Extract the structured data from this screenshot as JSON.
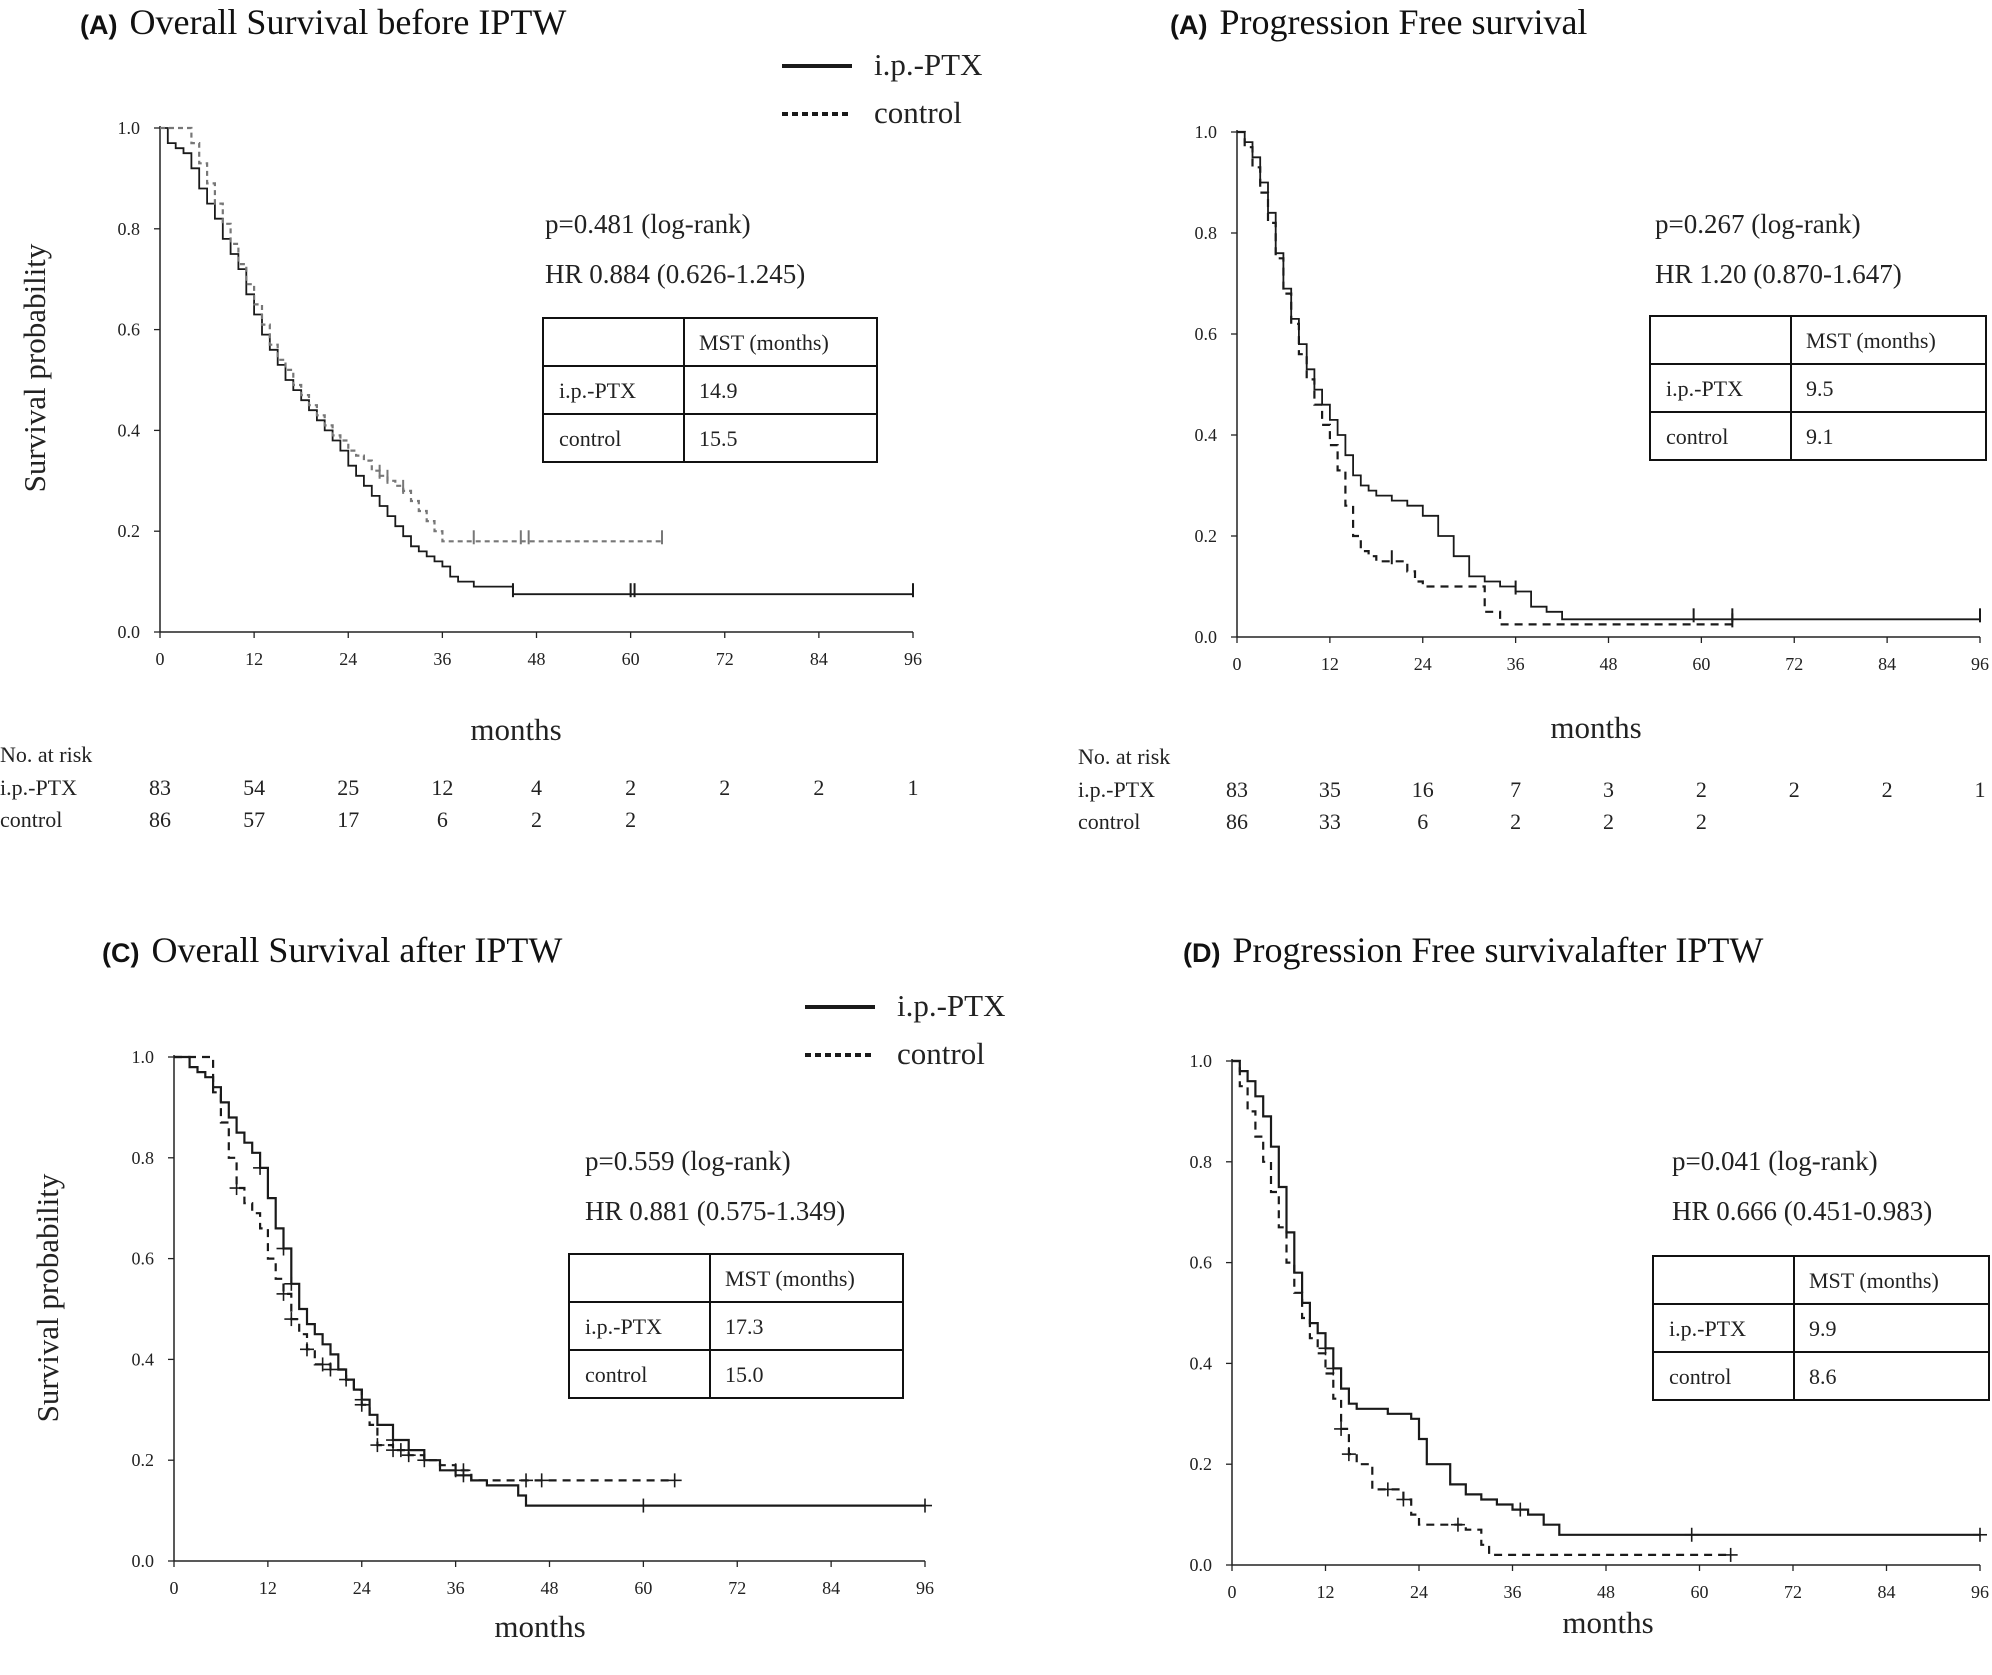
{
  "figure": {
    "x_axis_label": "months",
    "y_axis_label": "Survival probability",
    "at_risk_title": "No. at risk",
    "mst_header": "MST (months)",
    "legend": {
      "treatment": "i.p.-PTX",
      "control": "control"
    },
    "colors": {
      "treatment": "#1a1a1a",
      "control_grey": "#777777",
      "control_black": "#1a1a1a",
      "axis": "#222222"
    }
  },
  "chart_data": [
    {
      "type": "line",
      "panel_letter": "(A)",
      "title": "Overall Survival before IPTW",
      "xlabel": "months",
      "ylabel": "Survival probability",
      "xlim": [
        0,
        96
      ],
      "ylim": [
        0,
        1.0
      ],
      "x_ticks": [
        "0",
        "12",
        "24",
        "36",
        "48",
        "60",
        "72",
        "84",
        "96"
      ],
      "y_ticks": [
        "0.0",
        "0.2",
        "0.4",
        "0.6",
        "0.8",
        "1.0"
      ],
      "stats": {
        "p": "p=0.481 (log-rank)",
        "hr": "HR 0.884 (0.626-1.245)"
      },
      "mst": {
        "treatment": "14.9",
        "control": "15.5"
      },
      "at_risk": {
        "treatment": [
          "83",
          "54",
          "25",
          "12",
          "4",
          "2",
          "2",
          "2",
          "1"
        ],
        "control": [
          "86",
          "57",
          "17",
          "6",
          "2",
          "2"
        ]
      },
      "series": [
        {
          "name": "i.p.-PTX",
          "style": "solid",
          "x": [
            0,
            1,
            2,
            3,
            4,
            5,
            6,
            7,
            8,
            9,
            10,
            11,
            12,
            13,
            14,
            15,
            16,
            17,
            18,
            19,
            20,
            21,
            22,
            23,
            24,
            25,
            26,
            27,
            28,
            29,
            30,
            31,
            32,
            33,
            34,
            35,
            36,
            37,
            38,
            40,
            42,
            45,
            60,
            96
          ],
          "y": [
            1.0,
            0.97,
            0.96,
            0.95,
            0.92,
            0.88,
            0.85,
            0.82,
            0.78,
            0.75,
            0.72,
            0.67,
            0.63,
            0.59,
            0.56,
            0.53,
            0.5,
            0.48,
            0.46,
            0.44,
            0.42,
            0.4,
            0.38,
            0.36,
            0.33,
            0.31,
            0.29,
            0.27,
            0.25,
            0.23,
            0.21,
            0.19,
            0.17,
            0.16,
            0.15,
            0.14,
            0.13,
            0.11,
            0.1,
            0.09,
            0.09,
            0.075,
            0.075,
            0.075
          ],
          "censor_x": [
            45,
            60,
            60.5,
            96
          ]
        },
        {
          "name": "control",
          "style": "dashed-grey",
          "x": [
            0,
            3,
            4,
            5,
            6,
            7,
            8,
            9,
            10,
            11,
            12,
            13,
            14,
            15,
            16,
            17,
            18,
            19,
            20,
            21,
            22,
            23,
            24,
            25,
            26,
            27,
            28,
            29,
            30,
            31,
            32,
            33,
            34,
            35,
            36,
            64
          ],
          "y": [
            1.0,
            1.0,
            0.97,
            0.93,
            0.89,
            0.85,
            0.81,
            0.77,
            0.73,
            0.69,
            0.65,
            0.61,
            0.57,
            0.54,
            0.52,
            0.49,
            0.47,
            0.45,
            0.43,
            0.41,
            0.39,
            0.38,
            0.36,
            0.35,
            0.34,
            0.32,
            0.31,
            0.3,
            0.29,
            0.28,
            0.26,
            0.24,
            0.22,
            0.2,
            0.18,
            0.18
          ],
          "censor_x": [
            28,
            29,
            31,
            40,
            46,
            47,
            64
          ]
        }
      ]
    },
    {
      "type": "line",
      "panel_letter": "(A)",
      "title": "Progression Free survival",
      "xlabel": "months",
      "ylabel": "",
      "xlim": [
        0,
        96
      ],
      "ylim": [
        0,
        1.0
      ],
      "x_ticks": [
        "0",
        "12",
        "24",
        "36",
        "48",
        "60",
        "72",
        "84",
        "96"
      ],
      "y_ticks": [
        "0.0",
        "0.2",
        "0.4",
        "0.6",
        "0.8",
        "1.0"
      ],
      "stats": {
        "p": "p=0.267 (log-rank)",
        "hr": "HR 1.20 (0.870-1.647)"
      },
      "mst": {
        "treatment": "9.5",
        "control": "9.1"
      },
      "at_risk": {
        "treatment": [
          "83",
          "35",
          "16",
          "7",
          "3",
          "2",
          "2",
          "2",
          "1"
        ],
        "control": [
          "86",
          "33",
          "6",
          "2",
          "2",
          "2"
        ]
      },
      "series": [
        {
          "name": "i.p.-PTX",
          "style": "solid",
          "x": [
            0,
            1,
            2,
            3,
            4,
            5,
            6,
            7,
            8,
            9,
            10,
            11,
            12,
            13,
            14,
            15,
            16,
            17,
            18,
            20,
            22,
            24,
            26,
            28,
            30,
            32,
            34,
            36,
            38,
            40,
            42,
            59,
            96
          ],
          "y": [
            1.0,
            0.98,
            0.95,
            0.9,
            0.84,
            0.76,
            0.69,
            0.63,
            0.58,
            0.53,
            0.49,
            0.46,
            0.43,
            0.4,
            0.36,
            0.32,
            0.3,
            0.29,
            0.28,
            0.27,
            0.26,
            0.24,
            0.2,
            0.16,
            0.12,
            0.11,
            0.1,
            0.09,
            0.06,
            0.05,
            0.035,
            0.035,
            0.035
          ],
          "censor_x": [
            36,
            59,
            64,
            96
          ]
        },
        {
          "name": "control",
          "style": "dashed-black",
          "x": [
            0,
            1,
            2,
            3,
            4,
            5,
            6,
            7,
            8,
            9,
            10,
            11,
            12,
            13,
            14,
            15,
            16,
            17,
            18,
            20,
            22,
            23,
            24,
            26,
            28,
            32,
            34,
            64
          ],
          "y": [
            1.0,
            0.97,
            0.93,
            0.88,
            0.82,
            0.75,
            0.68,
            0.62,
            0.56,
            0.51,
            0.46,
            0.42,
            0.38,
            0.33,
            0.26,
            0.2,
            0.17,
            0.16,
            0.15,
            0.15,
            0.13,
            0.11,
            0.1,
            0.1,
            0.1,
            0.05,
            0.025,
            0.025
          ],
          "censor_x": [
            20,
            64
          ]
        }
      ]
    },
    {
      "type": "line",
      "panel_letter": "(C)",
      "title": "Overall Survival after IPTW",
      "xlabel": "months",
      "ylabel": "Survival probability",
      "xlim": [
        0,
        96
      ],
      "ylim": [
        0,
        1.0
      ],
      "x_ticks": [
        "0",
        "12",
        "24",
        "36",
        "48",
        "60",
        "72",
        "84",
        "96"
      ],
      "y_ticks": [
        "0.0",
        "0.2",
        "0.4",
        "0.6",
        "0.8",
        "1.0"
      ],
      "stats": {
        "p": "p=0.559 (log-rank)",
        "hr": "HR 0.881 (0.575-1.349)"
      },
      "mst": {
        "treatment": "17.3",
        "control": "15.0"
      },
      "series": [
        {
          "name": "i.p.-PTX",
          "style": "solid",
          "x": [
            0,
            2,
            3,
            4,
            5,
            6,
            7,
            8,
            9,
            10,
            11,
            12,
            13,
            14,
            15,
            16,
            17,
            18,
            19,
            20,
            21,
            22,
            23,
            24,
            25,
            26,
            28,
            30,
            32,
            34,
            36,
            38,
            40,
            44,
            45,
            96
          ],
          "y": [
            1.0,
            0.98,
            0.97,
            0.96,
            0.94,
            0.91,
            0.88,
            0.85,
            0.83,
            0.81,
            0.78,
            0.72,
            0.66,
            0.62,
            0.55,
            0.5,
            0.47,
            0.45,
            0.43,
            0.41,
            0.38,
            0.36,
            0.34,
            0.32,
            0.29,
            0.27,
            0.24,
            0.22,
            0.2,
            0.18,
            0.17,
            0.16,
            0.15,
            0.13,
            0.11,
            0.11
          ],
          "censor_x": [
            11,
            14,
            15,
            24,
            28,
            30,
            37,
            60,
            96
          ]
        },
        {
          "name": "control",
          "style": "dashed-black",
          "x": [
            0,
            4,
            5,
            6,
            7,
            8,
            9,
            10,
            11,
            12,
            13,
            14,
            15,
            16,
            17,
            18,
            20,
            22,
            23,
            24,
            25,
            26,
            28,
            30,
            32,
            34,
            36,
            38,
            64
          ],
          "y": [
            1.0,
            1.0,
            0.93,
            0.87,
            0.8,
            0.74,
            0.71,
            0.69,
            0.66,
            0.6,
            0.56,
            0.53,
            0.48,
            0.45,
            0.42,
            0.39,
            0.38,
            0.36,
            0.34,
            0.31,
            0.27,
            0.23,
            0.22,
            0.21,
            0.2,
            0.19,
            0.18,
            0.16,
            0.16
          ],
          "censor_x": [
            8,
            14,
            15,
            17,
            19,
            20,
            22,
            24,
            26,
            28,
            29,
            30,
            32,
            36,
            37,
            45,
            47,
            64
          ]
        }
      ]
    },
    {
      "type": "line",
      "panel_letter": "(D)",
      "title": "Progression Free survivalafter IPTW",
      "xlabel": "months",
      "ylabel": "",
      "xlim": [
        0,
        96
      ],
      "ylim": [
        0,
        1.0
      ],
      "x_ticks": [
        "0",
        "12",
        "24",
        "36",
        "48",
        "60",
        "72",
        "84",
        "96"
      ],
      "y_ticks": [
        "0.0",
        "0.2",
        "0.4",
        "0.6",
        "0.8",
        "1.0"
      ],
      "stats": {
        "p": "p=0.041 (log-rank)",
        "hr": "HR 0.666 (0.451-0.983)"
      },
      "mst": {
        "treatment": "9.9",
        "control": "8.6"
      },
      "series": [
        {
          "name": "i.p.-PTX",
          "style": "solid",
          "x": [
            0,
            1,
            2,
            3,
            4,
            5,
            6,
            7,
            8,
            9,
            10,
            11,
            12,
            13,
            14,
            15,
            16,
            18,
            20,
            22,
            23,
            24,
            25,
            28,
            30,
            32,
            34,
            36,
            38,
            40,
            42,
            96
          ],
          "y": [
            1.0,
            0.98,
            0.96,
            0.93,
            0.89,
            0.83,
            0.75,
            0.66,
            0.58,
            0.52,
            0.48,
            0.46,
            0.43,
            0.39,
            0.35,
            0.32,
            0.31,
            0.31,
            0.3,
            0.3,
            0.29,
            0.25,
            0.2,
            0.16,
            0.14,
            0.13,
            0.12,
            0.11,
            0.1,
            0.08,
            0.06,
            0.06
          ],
          "censor_x": [
            12,
            13,
            37,
            59,
            96
          ]
        },
        {
          "name": "control",
          "style": "dashed-black",
          "x": [
            0,
            1,
            2,
            3,
            4,
            5,
            6,
            7,
            8,
            9,
            10,
            11,
            12,
            13,
            14,
            15,
            16,
            18,
            22,
            23,
            24,
            28,
            30,
            32,
            33,
            64
          ],
          "y": [
            1.0,
            0.95,
            0.9,
            0.85,
            0.8,
            0.74,
            0.67,
            0.6,
            0.54,
            0.49,
            0.45,
            0.42,
            0.38,
            0.33,
            0.27,
            0.22,
            0.2,
            0.15,
            0.13,
            0.1,
            0.08,
            0.08,
            0.07,
            0.04,
            0.02,
            0.02
          ],
          "censor_x": [
            14,
            15,
            20,
            22,
            29,
            64
          ]
        }
      ]
    }
  ]
}
